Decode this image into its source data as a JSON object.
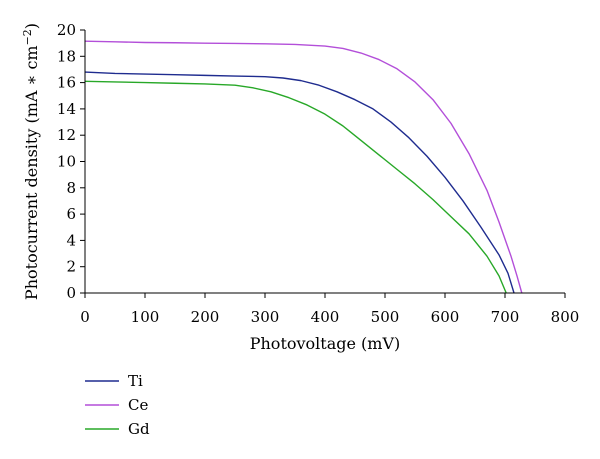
{
  "chart_data": {
    "type": "line",
    "title": "",
    "xlabel": "Photovoltage (mV)",
    "ylabel_main": "Photocurrent density (mA ∗ cm",
    "ylabel_sup": "−2",
    "ylabel_close": ")",
    "xlim": [
      0,
      800
    ],
    "ylim": [
      0,
      20
    ],
    "x_ticks": [
      0,
      100,
      200,
      300,
      400,
      500,
      600,
      700,
      800
    ],
    "y_ticks": [
      0,
      2,
      4,
      6,
      8,
      10,
      12,
      14,
      16,
      18,
      20
    ],
    "grid": false,
    "legend_position": "bottom-left",
    "series": [
      {
        "name": "Ti",
        "color": "#1f2c8f",
        "points": [
          [
            0,
            16.8
          ],
          [
            50,
            16.7
          ],
          [
            100,
            16.65
          ],
          [
            150,
            16.6
          ],
          [
            200,
            16.55
          ],
          [
            250,
            16.5
          ],
          [
            300,
            16.45
          ],
          [
            330,
            16.35
          ],
          [
            360,
            16.15
          ],
          [
            390,
            15.8
          ],
          [
            420,
            15.3
          ],
          [
            450,
            14.7
          ],
          [
            480,
            14.0
          ],
          [
            510,
            13.0
          ],
          [
            540,
            11.8
          ],
          [
            570,
            10.4
          ],
          [
            600,
            8.8
          ],
          [
            630,
            7.0
          ],
          [
            660,
            5.0
          ],
          [
            690,
            2.9
          ],
          [
            705,
            1.5
          ],
          [
            715,
            0
          ]
        ]
      },
      {
        "name": "Ce",
        "color": "#b34fd9",
        "points": [
          [
            0,
            19.15
          ],
          [
            50,
            19.1
          ],
          [
            100,
            19.05
          ],
          [
            150,
            19.03
          ],
          [
            200,
            19.0
          ],
          [
            250,
            18.98
          ],
          [
            300,
            18.95
          ],
          [
            350,
            18.9
          ],
          [
            400,
            18.78
          ],
          [
            430,
            18.6
          ],
          [
            460,
            18.25
          ],
          [
            490,
            17.75
          ],
          [
            520,
            17.05
          ],
          [
            550,
            16.05
          ],
          [
            580,
            14.7
          ],
          [
            610,
            12.9
          ],
          [
            640,
            10.6
          ],
          [
            670,
            7.8
          ],
          [
            690,
            5.4
          ],
          [
            710,
            2.8
          ],
          [
            720,
            1.3
          ],
          [
            728,
            0
          ]
        ]
      },
      {
        "name": "Gd",
        "color": "#28a828",
        "points": [
          [
            0,
            16.1
          ],
          [
            50,
            16.05
          ],
          [
            100,
            16.0
          ],
          [
            150,
            15.95
          ],
          [
            200,
            15.9
          ],
          [
            250,
            15.8
          ],
          [
            280,
            15.6
          ],
          [
            310,
            15.3
          ],
          [
            340,
            14.85
          ],
          [
            370,
            14.3
          ],
          [
            400,
            13.6
          ],
          [
            430,
            12.7
          ],
          [
            460,
            11.6
          ],
          [
            490,
            10.5
          ],
          [
            520,
            9.4
          ],
          [
            550,
            8.3
          ],
          [
            580,
            7.1
          ],
          [
            610,
            5.8
          ],
          [
            640,
            4.5
          ],
          [
            670,
            2.8
          ],
          [
            690,
            1.3
          ],
          [
            702,
            0
          ]
        ]
      }
    ]
  }
}
